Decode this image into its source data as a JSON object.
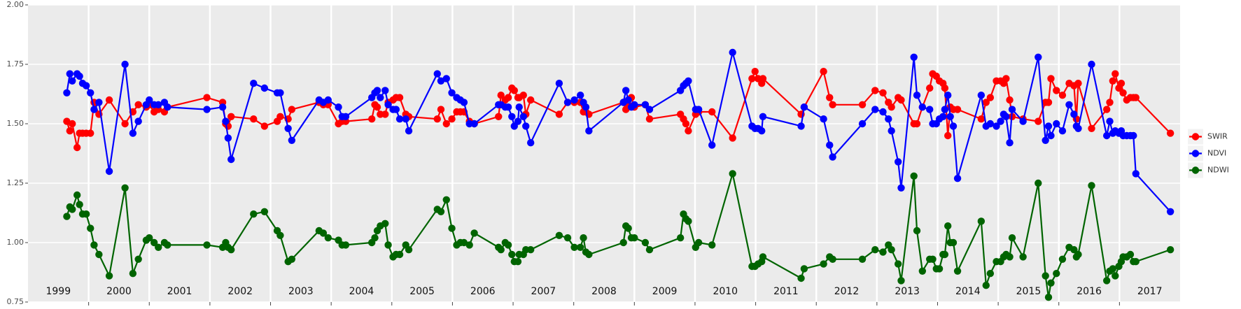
{
  "chart_data": {
    "type": "line",
    "x": [
      1999.64,
      1999.69,
      1999.73,
      1999.81,
      1999.85,
      1999.9,
      1999.96,
      2000.03,
      2000.09,
      2000.17,
      2000.34,
      2000.6,
      2000.73,
      2000.82,
      2000.95,
      2001.0,
      2001.08,
      2001.15,
      2001.25,
      2001.3,
      2001.95,
      2002.21,
      2002.26,
      2002.3,
      2002.35,
      2002.72,
      2002.9,
      2003.11,
      2003.16,
      2003.29,
      2003.35,
      2003.8,
      2003.87,
      2003.95,
      2004.12,
      2004.18,
      2004.24,
      2004.67,
      2004.72,
      2004.76,
      2004.81,
      2004.89,
      2004.94,
      2005.02,
      2005.07,
      2005.13,
      2005.23,
      2005.28,
      2005.75,
      2005.81,
      2005.9,
      2005.99,
      2006.07,
      2006.13,
      2006.19,
      2006.28,
      2006.36,
      2006.76,
      2006.8,
      2006.87,
      2006.92,
      2006.98,
      2007.02,
      2007.08,
      2007.1,
      2007.17,
      2007.21,
      2007.29,
      2007.76,
      2007.9,
      2008.01,
      2008.11,
      2008.16,
      2008.2,
      2008.25,
      2008.82,
      2008.86,
      2008.9,
      2008.95,
      2009.0,
      2009.18,
      2009.25,
      2009.76,
      2009.81,
      2009.85,
      2009.89,
      2010.01,
      2010.06,
      2010.28,
      2010.62,
      2010.94,
      2010.99,
      2011.04,
      2011.1,
      2011.12,
      2011.75,
      2011.8,
      2012.12,
      2012.22,
      2012.27,
      2012.76,
      2012.97,
      2013.1,
      2013.19,
      2013.24,
      2013.35,
      2013.4,
      2013.61,
      2013.66,
      2013.75,
      2013.87,
      2013.92,
      2013.98,
      2014.03,
      2014.09,
      2014.12,
      2014.17,
      2014.21,
      2014.26,
      2014.33,
      2014.72,
      2014.8,
      2014.87,
      2014.97,
      2015.04,
      2015.09,
      2015.13,
      2015.19,
      2015.23,
      2015.41,
      2015.66,
      2015.78,
      2015.83,
      2015.87,
      2015.96,
      2016.06,
      2016.17,
      2016.25,
      2016.29,
      2016.32,
      2016.54,
      2016.79,
      2016.84,
      2016.89,
      2016.93,
      2016.99,
      2017.03,
      2017.06,
      2017.12,
      2017.18,
      2017.23,
      2017.27,
      2017.84
    ],
    "series": [
      {
        "name": "SWIR",
        "color": "#ff0000",
        "values": [
          1.51,
          1.47,
          1.5,
          1.4,
          1.46,
          1.46,
          1.46,
          1.46,
          1.59,
          1.54,
          1.6,
          1.5,
          1.55,
          1.58,
          1.57,
          1.58,
          1.55,
          1.56,
          1.55,
          1.57,
          1.61,
          1.59,
          1.5,
          1.49,
          1.53,
          1.52,
          1.49,
          1.51,
          1.53,
          1.52,
          1.56,
          1.59,
          1.58,
          1.58,
          1.5,
          1.51,
          1.51,
          1.52,
          1.58,
          1.57,
          1.54,
          1.54,
          1.59,
          1.6,
          1.61,
          1.61,
          1.54,
          1.53,
          1.52,
          1.56,
          1.5,
          1.52,
          1.55,
          1.55,
          1.55,
          1.51,
          1.5,
          1.53,
          1.62,
          1.6,
          1.61,
          1.65,
          1.64,
          1.61,
          1.61,
          1.62,
          1.54,
          1.6,
          1.54,
          1.59,
          1.59,
          1.59,
          1.55,
          1.55,
          1.54,
          1.59,
          1.56,
          1.58,
          1.61,
          1.57,
          1.58,
          1.52,
          1.54,
          1.52,
          1.5,
          1.47,
          1.54,
          1.55,
          1.55,
          1.44,
          1.69,
          1.72,
          1.69,
          1.67,
          1.69,
          1.54,
          1.57,
          1.72,
          1.61,
          1.58,
          1.58,
          1.64,
          1.63,
          1.59,
          1.57,
          1.61,
          1.6,
          1.5,
          1.5,
          1.57,
          1.65,
          1.71,
          1.7,
          1.68,
          1.67,
          1.65,
          1.45,
          1.57,
          1.56,
          1.56,
          1.52,
          1.59,
          1.61,
          1.68,
          1.68,
          1.67,
          1.69,
          1.6,
          1.53,
          1.52,
          1.51,
          1.59,
          1.59,
          1.69,
          1.64,
          1.62,
          1.67,
          1.66,
          1.52,
          1.67,
          1.48,
          1.56,
          1.59,
          1.68,
          1.71,
          1.65,
          1.67,
          1.63,
          1.6,
          1.61,
          1.61,
          1.61,
          1.46
        ]
      },
      {
        "name": "NDVI",
        "color": "#0000ff",
        "values": [
          1.63,
          1.71,
          1.68,
          1.71,
          1.7,
          1.67,
          1.66,
          1.63,
          1.56,
          1.59,
          1.3,
          1.75,
          1.46,
          1.51,
          1.58,
          1.6,
          1.58,
          1.58,
          1.59,
          1.57,
          1.56,
          1.57,
          1.51,
          1.44,
          1.35,
          1.67,
          1.65,
          1.63,
          1.63,
          1.48,
          1.43,
          1.6,
          1.59,
          1.6,
          1.57,
          1.53,
          1.53,
          1.61,
          1.63,
          1.64,
          1.61,
          1.64,
          1.58,
          1.56,
          1.56,
          1.52,
          1.52,
          1.47,
          1.71,
          1.68,
          1.69,
          1.63,
          1.61,
          1.6,
          1.59,
          1.5,
          1.5,
          1.58,
          1.58,
          1.57,
          1.57,
          1.53,
          1.49,
          1.51,
          1.57,
          1.53,
          1.49,
          1.42,
          1.67,
          1.59,
          1.6,
          1.62,
          1.59,
          1.57,
          1.47,
          1.59,
          1.64,
          1.6,
          1.57,
          1.58,
          1.58,
          1.56,
          1.64,
          1.66,
          1.67,
          1.68,
          1.56,
          1.56,
          1.41,
          1.8,
          1.49,
          1.48,
          1.48,
          1.47,
          1.53,
          1.49,
          1.57,
          1.52,
          1.41,
          1.36,
          1.5,
          1.56,
          1.55,
          1.52,
          1.47,
          1.34,
          1.23,
          1.78,
          1.62,
          1.57,
          1.56,
          1.5,
          1.5,
          1.52,
          1.53,
          1.56,
          1.62,
          1.53,
          1.49,
          1.27,
          1.62,
          1.49,
          1.5,
          1.49,
          1.51,
          1.54,
          1.53,
          1.42,
          1.56,
          1.51,
          1.78,
          1.43,
          1.49,
          1.45,
          1.5,
          1.47,
          1.58,
          1.54,
          1.49,
          1.48,
          1.75,
          1.45,
          1.51,
          1.46,
          1.47,
          1.46,
          1.47,
          1.45,
          1.45,
          1.45,
          1.45,
          1.29,
          1.13
        ]
      },
      {
        "name": "NDWI",
        "color": "#006400",
        "values": [
          1.11,
          1.15,
          1.14,
          1.2,
          1.16,
          1.12,
          1.12,
          1.06,
          0.99,
          0.95,
          0.86,
          1.23,
          0.87,
          0.93,
          1.01,
          1.02,
          1.0,
          0.98,
          1.0,
          0.99,
          0.99,
          0.98,
          1.0,
          0.98,
          0.97,
          1.12,
          1.13,
          1.05,
          1.03,
          0.92,
          0.93,
          1.05,
          1.04,
          1.02,
          1.01,
          0.99,
          0.99,
          1.0,
          1.02,
          1.05,
          1.07,
          1.08,
          0.99,
          0.94,
          0.95,
          0.95,
          0.99,
          0.97,
          1.14,
          1.13,
          1.18,
          1.06,
          0.99,
          1.0,
          1.0,
          0.99,
          1.04,
          0.98,
          0.97,
          1.0,
          0.99,
          0.95,
          0.92,
          0.92,
          0.95,
          0.95,
          0.97,
          0.97,
          1.03,
          1.02,
          0.98,
          0.98,
          1.02,
          0.96,
          0.95,
          1.0,
          1.07,
          1.06,
          1.02,
          1.02,
          1.0,
          0.97,
          1.02,
          1.12,
          1.1,
          1.09,
          0.98,
          1.0,
          0.99,
          1.29,
          0.9,
          0.9,
          0.91,
          0.92,
          0.94,
          0.85,
          0.89,
          0.91,
          0.94,
          0.93,
          0.93,
          0.97,
          0.96,
          0.99,
          0.97,
          0.91,
          0.84,
          1.28,
          1.05,
          0.88,
          0.93,
          0.93,
          0.89,
          0.89,
          0.95,
          0.95,
          1.07,
          1.0,
          1.0,
          0.88,
          1.09,
          0.82,
          0.87,
          0.92,
          0.92,
          0.94,
          0.95,
          0.94,
          1.02,
          0.94,
          1.25,
          0.86,
          0.77,
          0.83,
          0.87,
          0.93,
          0.98,
          0.97,
          0.94,
          0.95,
          1.24,
          0.84,
          0.88,
          0.89,
          0.86,
          0.9,
          0.92,
          0.94,
          0.94,
          0.95,
          0.92,
          0.92,
          0.97
        ]
      }
    ],
    "xlim": [
      1999,
      2018
    ],
    "xticks": [
      {
        "value": 1999.5,
        "label": "1999"
      },
      {
        "value": 2000.5,
        "label": "2000"
      },
      {
        "value": 2001.5,
        "label": "2001"
      },
      {
        "value": 2002.5,
        "label": "2002"
      },
      {
        "value": 2003.5,
        "label": "2003"
      },
      {
        "value": 2004.5,
        "label": "2004"
      },
      {
        "value": 2005.5,
        "label": "2005"
      },
      {
        "value": 2006.5,
        "label": "2006"
      },
      {
        "value": 2007.5,
        "label": "2007"
      },
      {
        "value": 2008.5,
        "label": "2008"
      },
      {
        "value": 2009.5,
        "label": "2009"
      },
      {
        "value": 2010.5,
        "label": "2010"
      },
      {
        "value": 2011.5,
        "label": "2011"
      },
      {
        "value": 2012.5,
        "label": "2012"
      },
      {
        "value": 2013.5,
        "label": "2013"
      },
      {
        "value": 2014.5,
        "label": "2014"
      },
      {
        "value": 2015.5,
        "label": "2015"
      },
      {
        "value": 2016.5,
        "label": "2016"
      },
      {
        "value": 2017.5,
        "label": "2017"
      }
    ],
    "x_gridlines": [
      2000,
      2001,
      2002,
      2003,
      2004,
      2005,
      2006,
      2007,
      2008,
      2009,
      2010,
      2011,
      2012,
      2013,
      2014,
      2015,
      2016,
      2017
    ],
    "ylim": [
      0.75,
      2.0
    ],
    "yticks": [
      {
        "value": 0.75,
        "label": "0.75"
      },
      {
        "value": 1.0,
        "label": "1.00"
      },
      {
        "value": 1.25,
        "label": "1.25"
      },
      {
        "value": 1.5,
        "label": "1.50"
      },
      {
        "value": 1.75,
        "label": "1.75"
      },
      {
        "value": 2.0,
        "label": "2.00"
      }
    ],
    "grid": true,
    "legend": "right"
  }
}
